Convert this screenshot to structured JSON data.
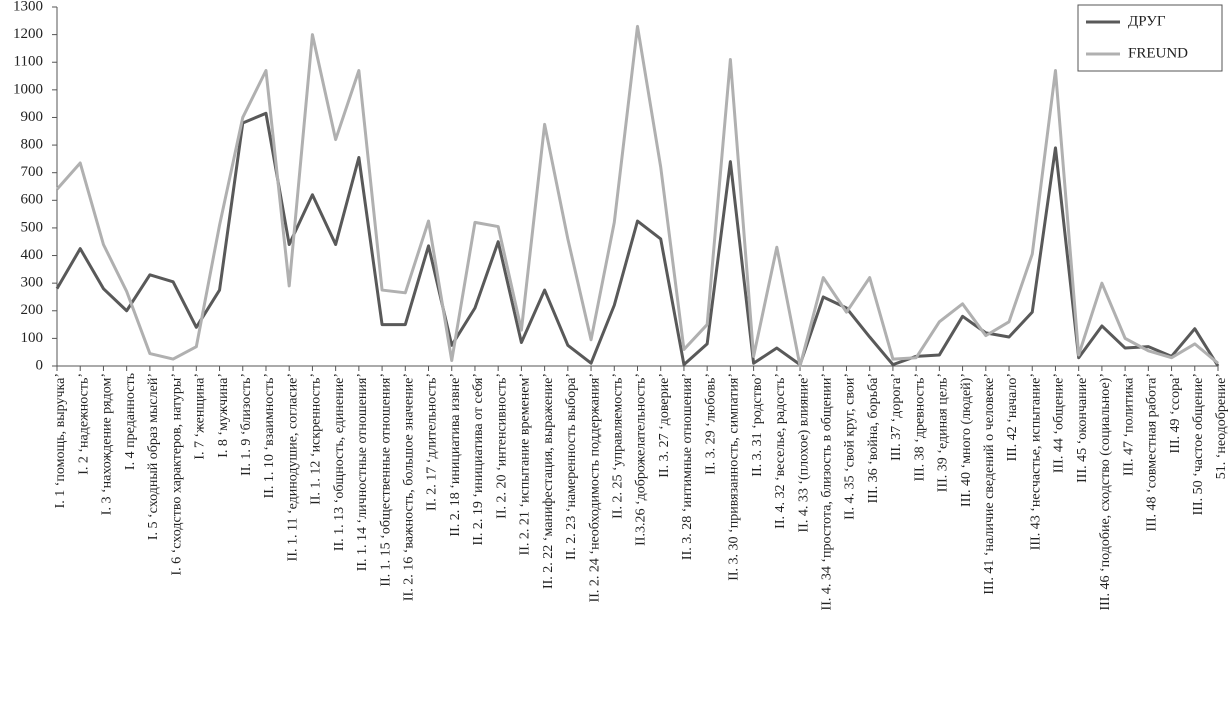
{
  "chart_data": {
    "type": "line",
    "categories": [
      "I. 1 ‘помощь, выручка’",
      "I. 2 ‘надежность’",
      "I. 3 ‘нахождение рядом’",
      "I. 4 преданность",
      "I. 5 ‘сходный образ мыслей’",
      "I. 6 ‘сходство характеров, натуры’",
      "I. 7 ‘женщина’",
      "I. 8 ‘мужчина’",
      "II. 1. 9 ‘близость’",
      "II. 1. 10 ‘взаимность’",
      "II. 1. 11 ‘единодушие, согласие’",
      "II. 1. 12 ‘искренность’",
      "II. 1. 13 ‘общность, единение’",
      "II. 1. 14 ‘личностные отношения’",
      "II. 1. 15 ‘общественные отношения’",
      "II. 2. 16 ‘важность, большое значение’",
      "II. 2. 17 ‘длительность’",
      "II. 2. 18 ‘инициатива извне’",
      "II. 2. 19 ‘инициатива от себя’",
      "II. 2. 20 ‘интенсивность’",
      "II. 2. 21 ‘испытание временем’",
      "II. 2. 22 ‘манифестация, выражение’",
      "II. 2. 23 ‘намеренность выбора’",
      "II. 2. 24 ‘необходимость поддержания’",
      "II. 2. 25 ‘управляемость’",
      "II.3.26 ‘доброжелательность’",
      "II. 3. 27 ‘доверие’",
      "II. 3. 28 ‘интимные отношения’",
      "II. 3. 29 ‘любовь’",
      "II. 3. 30 ‘привязанность, симпатия’",
      "II. 3. 31 ‘родство’",
      "II. 4. 32 ‘веселье, радость’",
      "II. 4. 33 ‘(плохое) влияние’",
      "II. 4. 34 ‘простота, близость в общении’",
      "II. 4. 35 ‘свой круг, свои’",
      "III. 36 ‘война, борьба’",
      "III. 37 ‘дорога’",
      "III. 38 ‘древность’",
      "III. 39 ‘единая цель’",
      "III. 40 ‘много (людей)’",
      "III. 41 ‘наличие сведений о человеке’",
      "III. 42 ‘начало’",
      "III. 43 ‘несчастье, испытание’",
      "III. 44 ‘общение’",
      "III. 45 ‘окончание’",
      "III. 46 ‘подобие, сходство (социальное)’",
      "III. 47 ‘политика’",
      "III. 48 ‘совместная работа’",
      "III. 49 ‘ссора’",
      "III. 50 ‘частое общение’",
      "51. ‘неодобрение’"
    ],
    "series": [
      {
        "name": "ДРУГ",
        "color": "#595959",
        "values": [
          280,
          425,
          280,
          200,
          330,
          305,
          140,
          275,
          880,
          915,
          440,
          620,
          440,
          755,
          150,
          150,
          435,
          75,
          210,
          450,
          85,
          275,
          75,
          10,
          220,
          525,
          460,
          5,
          80,
          740,
          10,
          65,
          5,
          250,
          210,
          105,
          5,
          35,
          40,
          180,
          120,
          105,
          195,
          790,
          30,
          145,
          65,
          70,
          35,
          135,
          0
        ]
      },
      {
        "name": "FREUND",
        "color": "#b0b0b0",
        "values": [
          640,
          735,
          440,
          270,
          45,
          25,
          70,
          510,
          900,
          1070,
          290,
          1200,
          820,
          1070,
          275,
          265,
          525,
          20,
          520,
          505,
          130,
          875,
          460,
          95,
          520,
          1230,
          720,
          60,
          150,
          1110,
          35,
          430,
          0,
          320,
          195,
          320,
          25,
          30,
          160,
          225,
          110,
          160,
          405,
          1070,
          40,
          300,
          100,
          55,
          30,
          80,
          10
        ]
      }
    ],
    "ylim": [
      0,
      1300
    ],
    "yticks": [
      0,
      100,
      200,
      300,
      400,
      500,
      600,
      700,
      800,
      900,
      1000,
      1100,
      1200,
      1300
    ],
    "grid": false,
    "legend": "top-right"
  }
}
